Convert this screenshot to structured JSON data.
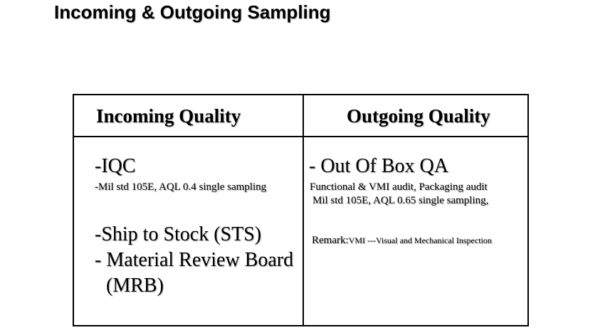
{
  "title": "Incoming & Outgoing Sampling",
  "table": {
    "incoming": {
      "header": "Incoming Quality",
      "iqc": "-IQC",
      "iqc_detail": "-Mil std 105E, AQL 0.4 single sampling",
      "sts": "-Ship to Stock (STS)",
      "mrb_line1": "- Material Review Board",
      "mrb_line2": "(MRB)"
    },
    "outgoing": {
      "header": "Outgoing Quality",
      "oob": "- Out Of Box QA",
      "oob_detail1": "Functional & VMI audit, Packaging audit",
      "oob_detail2": "Mil std 105E, AQL 0.65 single sampling,",
      "remark_label": "Remark:",
      "remark_text": "VMI ---Visual and Mechanical Inspection"
    }
  }
}
